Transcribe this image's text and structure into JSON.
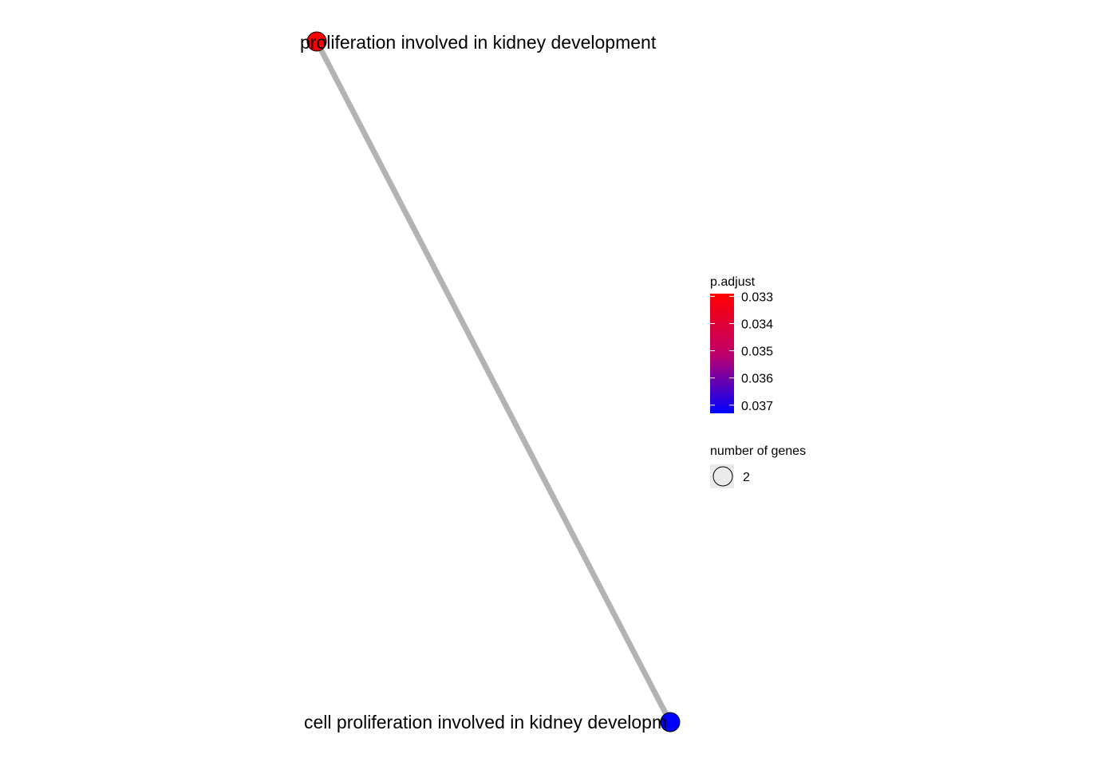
{
  "chart_data": {
    "type": "network",
    "nodes": [
      {
        "label": "proliferation involved in kidney development",
        "p_adjust": 0.0329,
        "size": 2
      },
      {
        "label": "cell proliferation involved in kidney developm",
        "p_adjust": 0.0373,
        "size": 2
      }
    ],
    "edges": [
      {
        "from": 0,
        "to": 1
      }
    ],
    "color_legend": {
      "title": "p.adjust",
      "ticks": [
        "0.033",
        "0.034",
        "0.035",
        "0.036",
        "0.037"
      ],
      "tick_values": [
        0.033,
        0.034,
        0.035,
        0.036,
        0.037
      ],
      "range": [
        0.0329,
        0.0373
      ],
      "low_color": "#ff0000",
      "high_color": "#0000ff"
    },
    "size_legend": {
      "title": "number of genes",
      "entries": [
        "2"
      ]
    },
    "edge_color": "#b3b3b3"
  }
}
